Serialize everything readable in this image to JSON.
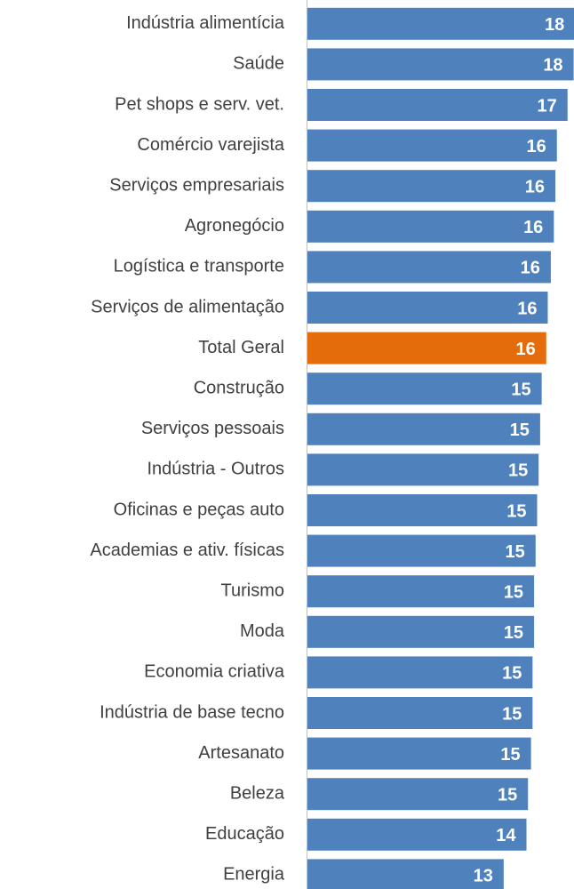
{
  "chart_data": {
    "type": "hbar",
    "categories": [
      "Indústria alimentícia",
      "Saúde",
      "Pet shops e serv. vet.",
      "Comércio varejista",
      "Serviços empresariais",
      "Agronegócio",
      "Logística e transporte",
      "Serviços de alimentação",
      "Total Geral",
      "Construção",
      "Serviços pessoais",
      "Indústria - Outros",
      "Oficinas e peças auto",
      "Academias e ativ. físicas",
      "Turismo",
      "Moda",
      "Economia criativa",
      "Indústria de base tecno",
      "Artesanato",
      "Beleza",
      "Educação",
      "Energia"
    ],
    "values": [
      17.6,
      17.5,
      17.1,
      16.4,
      16.3,
      16.2,
      16.0,
      15.8,
      15.7,
      15.4,
      15.3,
      15.2,
      15.1,
      15.0,
      14.9,
      14.9,
      14.8,
      14.8,
      14.7,
      14.5,
      14.4,
      12.9
    ],
    "value_labels": [
      "18",
      "18",
      "17",
      "16",
      "16",
      "16",
      "16",
      "16",
      "16",
      "15",
      "15",
      "15",
      "15",
      "15",
      "15",
      "15",
      "15",
      "15",
      "15",
      "15",
      "14",
      "13"
    ],
    "colors": [
      "#4f81bd",
      "#4f81bd",
      "#4f81bd",
      "#4f81bd",
      "#4f81bd",
      "#4f81bd",
      "#4f81bd",
      "#4f81bd",
      "#e46c0a",
      "#4f81bd",
      "#4f81bd",
      "#4f81bd",
      "#4f81bd",
      "#4f81bd",
      "#4f81bd",
      "#4f81bd",
      "#4f81bd",
      "#4f81bd",
      "#4f81bd",
      "#4f81bd",
      "#4f81bd",
      "#4f81bd"
    ],
    "xlim": [
      0,
      17.7
    ]
  }
}
